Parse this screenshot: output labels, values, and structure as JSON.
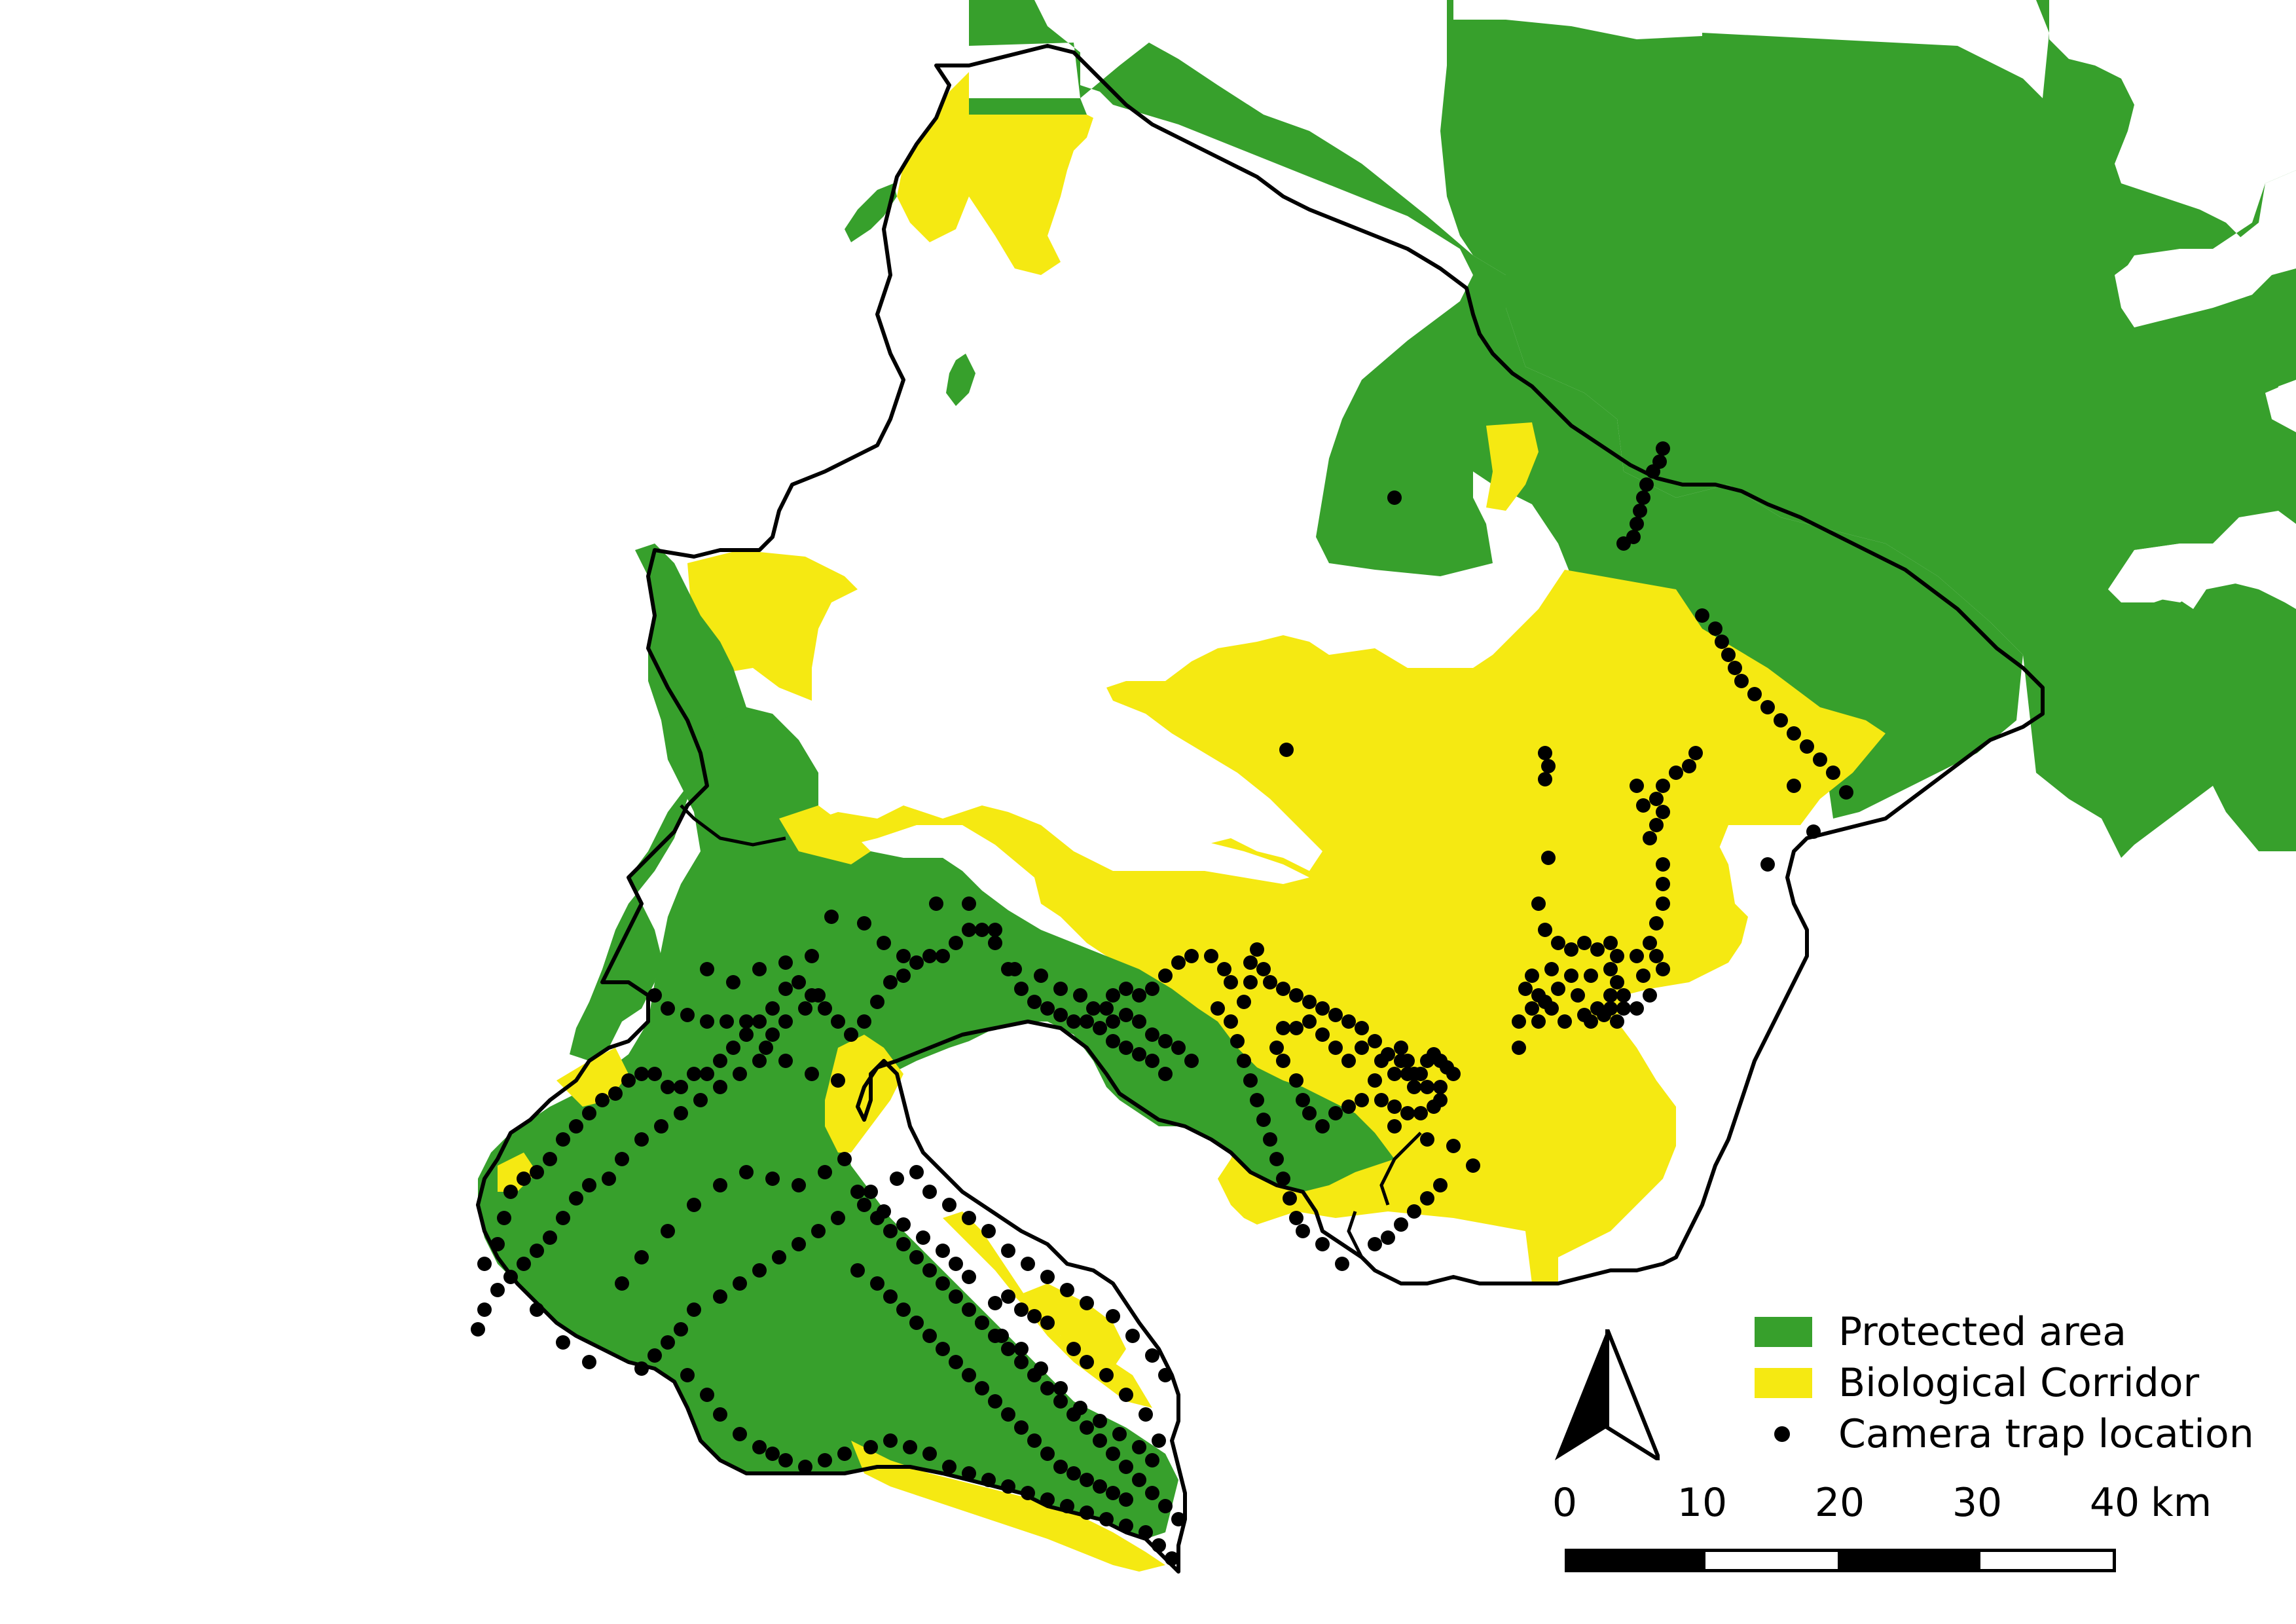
{
  "colors": {
    "protected_area": "#37a02c",
    "biological_corridor": "#f5e912",
    "camera_trap": "#000000",
    "boundary": "#000000",
    "background": "#ffffff"
  },
  "legend": {
    "items": [
      {
        "label": "Protected area",
        "type": "fill",
        "color": "#37a02c"
      },
      {
        "label": "Biological Corridor",
        "type": "fill",
        "color": "#f5e912"
      },
      {
        "label": "Camera trap location",
        "type": "point",
        "color": "#000000"
      }
    ]
  },
  "north_arrow": {
    "icon": "north-arrow-icon"
  },
  "scale_bar": {
    "ticks": [
      "0",
      "10",
      "20",
      "30",
      "40"
    ],
    "unit": "km"
  }
}
